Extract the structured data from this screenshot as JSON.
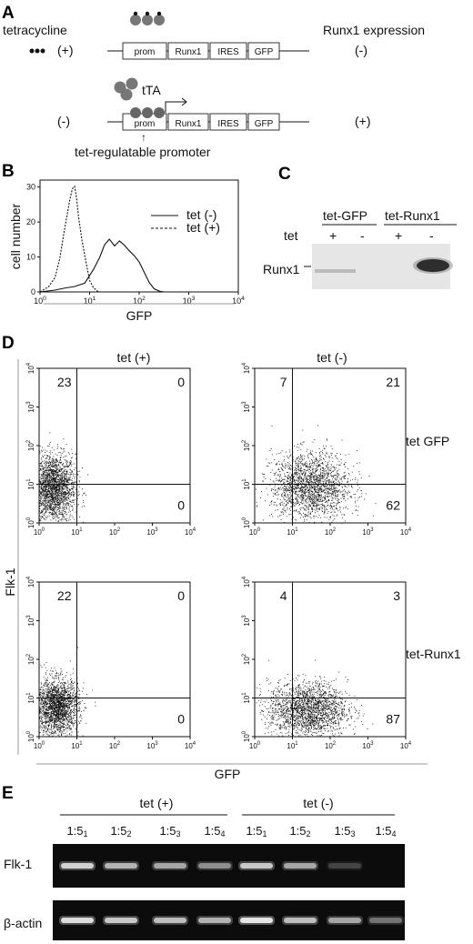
{
  "panel_a": {
    "letter": "A",
    "tetracycline": "tetracycline",
    "plus": "(+)",
    "minus": "(-)",
    "expression": "Runx1  expression",
    "expr_minus": "(-)",
    "expr_plus": "(+)",
    "tta": "tTA",
    "construct": [
      "prom",
      "Runx1",
      "IRES",
      "GFP"
    ],
    "promoter_note": "tet-regulatable promoter",
    "arrow_up": "↑"
  },
  "panel_b": {
    "letter": "B",
    "ylabel": "cell number",
    "xlabel": "GFP",
    "yticks": [
      "0",
      "10",
      "20",
      "30"
    ],
    "xticks": [
      {
        "base": "10",
        "exp": "0"
      },
      {
        "base": "10",
        "exp": "1"
      },
      {
        "base": "10",
        "exp": "2"
      },
      {
        "base": "10",
        "exp": "3"
      },
      {
        "base": "10",
        "exp": "4"
      }
    ],
    "legend": [
      {
        "label": "tet (-)",
        "style": "solid"
      },
      {
        "label": "tet (+)",
        "style": "dashed"
      }
    ]
  },
  "panel_c": {
    "letter": "C",
    "groups": [
      "tet-GFP",
      "tet-Runx1"
    ],
    "row_label": "tet",
    "lanes": [
      "+",
      "-",
      "+",
      "-"
    ],
    "band_label": "Runx1"
  },
  "panel_d": {
    "letter": "D",
    "col_titles": [
      "tet (+)",
      "tet (-)"
    ],
    "row_labels": [
      "tet GFP",
      "tet-Runx1"
    ],
    "ylabel": "Flk-1",
    "xlabel": "GFP",
    "tick_base": "10",
    "tick_exps": [
      "0",
      "1",
      "2",
      "3",
      "4"
    ]
  },
  "panel_e": {
    "letter": "E",
    "groups": [
      "tet (+)",
      "tet (-)"
    ],
    "dilutions": [
      {
        "a": "1:5",
        "b": "1"
      },
      {
        "a": "1:5",
        "b": "2"
      },
      {
        "a": "1:5",
        "b": "3"
      },
      {
        "a": "1:5",
        "b": "4"
      },
      {
        "a": "1:5",
        "b": "1"
      },
      {
        "a": "1:5",
        "b": "2"
      },
      {
        "a": "1:5",
        "b": "3"
      },
      {
        "a": "1:5",
        "b": "4"
      }
    ],
    "rows": [
      "Flk-1",
      "β-actin"
    ]
  },
  "chart_data": [
    {
      "type": "line",
      "panel": "B",
      "xlabel": "GFP",
      "ylabel": "cell number",
      "xscale": "log",
      "xlim": [
        1,
        10000
      ],
      "ylim": [
        0,
        32
      ],
      "series": [
        {
          "name": "tet (-)",
          "x": [
            1,
            2,
            3,
            5,
            8,
            12,
            16,
            20,
            25,
            32,
            40,
            50,
            63,
            80,
            100,
            130,
            160,
            200,
            260,
            320
          ],
          "values": [
            0,
            0,
            0.5,
            1.5,
            3,
            7,
            10,
            13,
            14.5,
            13,
            15,
            14,
            12,
            10,
            8,
            5,
            3,
            1.5,
            0.5,
            0
          ]
        },
        {
          "name": "tet (+)",
          "x": [
            1,
            1.5,
            2,
            2.5,
            3,
            3.5,
            4,
            4.5,
            5,
            5.5,
            6,
            7,
            8,
            9,
            10,
            12,
            15,
            20
          ],
          "values": [
            0,
            1,
            4,
            10,
            17,
            22,
            26,
            29,
            30,
            27,
            22,
            15,
            10,
            6,
            3,
            1.5,
            0.5,
            0
          ]
        }
      ]
    },
    {
      "type": "scatter",
      "panel": "D",
      "xlabel": "GFP",
      "ylabel": "Flk-1",
      "xscale": "log",
      "yscale": "log",
      "xlim": [
        1,
        10000
      ],
      "ylim": [
        1,
        10000
      ],
      "quadrant_gate": {
        "x": 10,
        "y": 10
      },
      "plots": [
        {
          "row": "tet GFP",
          "col": "tet (+)",
          "quadrants": {
            "UL": "23",
            "UR": "0",
            "LL": "",
            "LR": "0"
          },
          "cluster_center": [
            2.5,
            8
          ]
        },
        {
          "row": "tet GFP",
          "col": "tet (-)",
          "quadrants": {
            "UL": "7",
            "UR": "21",
            "LL": "",
            "LR": "62"
          },
          "cluster_center": [
            30,
            9
          ]
        },
        {
          "row": "tet-Runx1",
          "col": "tet (+)",
          "quadrants": {
            "UL": "22",
            "UR": "0",
            "LL": "",
            "LR": "0"
          },
          "cluster_center": [
            3,
            6
          ]
        },
        {
          "row": "tet-Runx1",
          "col": "tet (-)",
          "quadrants": {
            "UL": "4",
            "UR": "3",
            "LL": "",
            "LR": "87"
          },
          "cluster_center": [
            25,
            5
          ]
        }
      ]
    }
  ]
}
